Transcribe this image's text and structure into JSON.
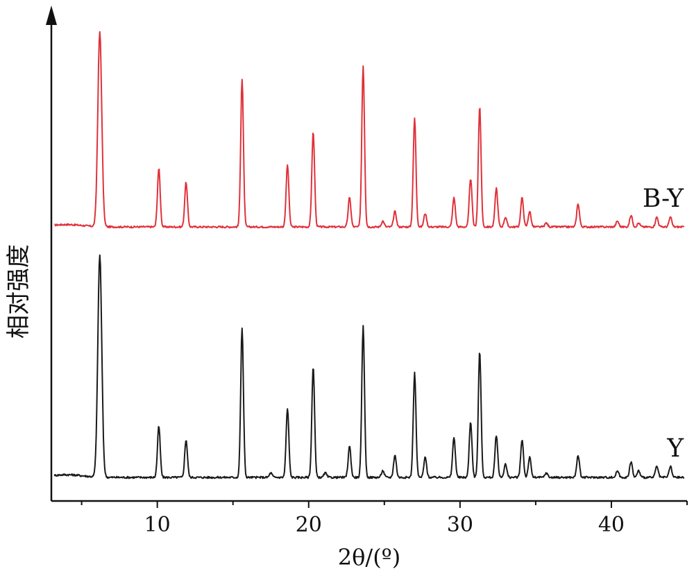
{
  "chart_data": {
    "type": "line",
    "xlabel": "2θ/(º)",
    "ylabel": "相对强度",
    "xlim": [
      3,
      45
    ],
    "x_ticks": [
      10,
      20,
      30,
      40
    ],
    "grid": false,
    "legend": "inline labels at right end of each trace",
    "series": [
      {
        "name": "B-Y",
        "color": "#e0313a",
        "peaks": [
          {
            "x": 6.2,
            "y": 100
          },
          {
            "x": 10.1,
            "y": 30
          },
          {
            "x": 11.9,
            "y": 23
          },
          {
            "x": 15.6,
            "y": 76
          },
          {
            "x": 18.6,
            "y": 32
          },
          {
            "x": 20.3,
            "y": 49
          },
          {
            "x": 22.7,
            "y": 15
          },
          {
            "x": 23.6,
            "y": 83
          },
          {
            "x": 24.9,
            "y": 3
          },
          {
            "x": 25.7,
            "y": 8
          },
          {
            "x": 27.0,
            "y": 56
          },
          {
            "x": 27.7,
            "y": 7
          },
          {
            "x": 29.6,
            "y": 15
          },
          {
            "x": 30.7,
            "y": 25
          },
          {
            "x": 31.3,
            "y": 62
          },
          {
            "x": 32.4,
            "y": 20
          },
          {
            "x": 33.0,
            "y": 5
          },
          {
            "x": 34.1,
            "y": 15
          },
          {
            "x": 34.6,
            "y": 8
          },
          {
            "x": 35.7,
            "y": 2
          },
          {
            "x": 37.8,
            "y": 12
          },
          {
            "x": 40.4,
            "y": 3
          },
          {
            "x": 41.3,
            "y": 6
          },
          {
            "x": 41.8,
            "y": 2
          },
          {
            "x": 43.0,
            "y": 5
          },
          {
            "x": 43.9,
            "y": 5
          }
        ]
      },
      {
        "name": "Y",
        "color": "#1a1a1a",
        "peaks": [
          {
            "x": 6.2,
            "y": 100
          },
          {
            "x": 10.1,
            "y": 23
          },
          {
            "x": 11.9,
            "y": 17
          },
          {
            "x": 15.6,
            "y": 67
          },
          {
            "x": 17.5,
            "y": 2
          },
          {
            "x": 18.6,
            "y": 31
          },
          {
            "x": 20.3,
            "y": 50
          },
          {
            "x": 21.1,
            "y": 2
          },
          {
            "x": 22.7,
            "y": 14
          },
          {
            "x": 23.6,
            "y": 68
          },
          {
            "x": 24.9,
            "y": 3
          },
          {
            "x": 25.7,
            "y": 10
          },
          {
            "x": 27.0,
            "y": 47
          },
          {
            "x": 27.7,
            "y": 9
          },
          {
            "x": 29.6,
            "y": 18
          },
          {
            "x": 30.7,
            "y": 25
          },
          {
            "x": 31.3,
            "y": 57
          },
          {
            "x": 32.4,
            "y": 19
          },
          {
            "x": 33.0,
            "y": 6
          },
          {
            "x": 34.1,
            "y": 17
          },
          {
            "x": 34.6,
            "y": 9
          },
          {
            "x": 35.7,
            "y": 2
          },
          {
            "x": 37.8,
            "y": 10
          },
          {
            "x": 40.4,
            "y": 3
          },
          {
            "x": 41.3,
            "y": 7
          },
          {
            "x": 41.8,
            "y": 3
          },
          {
            "x": 43.0,
            "y": 5
          },
          {
            "x": 43.9,
            "y": 5
          }
        ]
      }
    ]
  }
}
